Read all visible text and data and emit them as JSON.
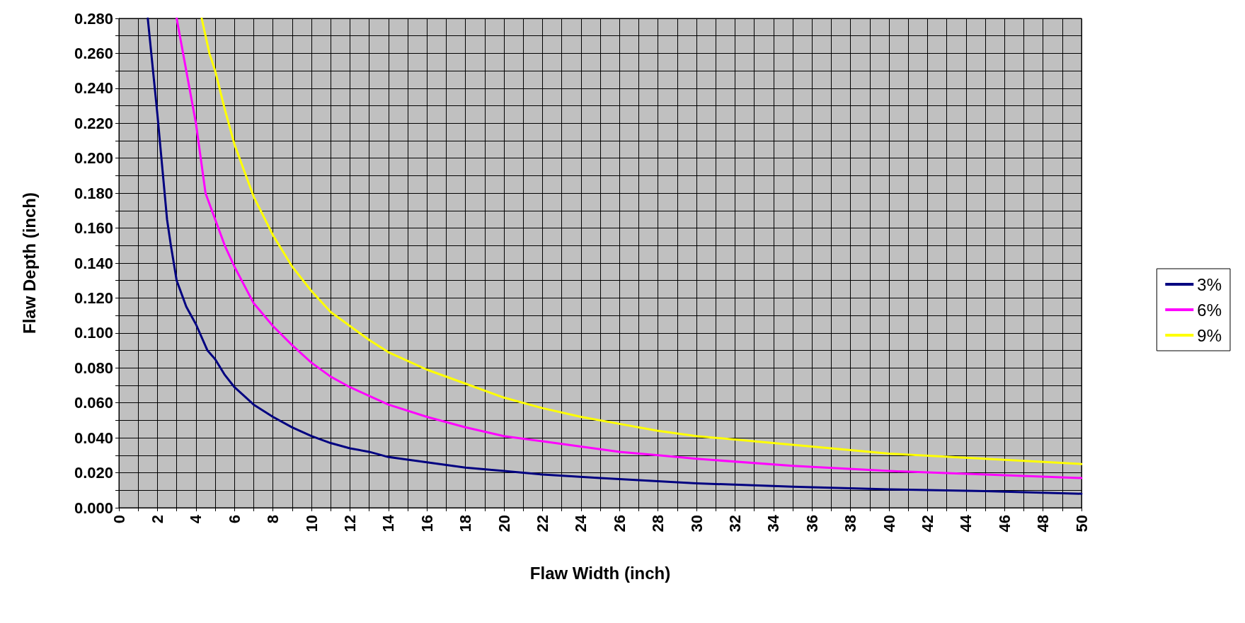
{
  "chart_data": {
    "type": "line",
    "xlabel": "Flaw Width (inch)",
    "ylabel": "Flaw Depth (inch)",
    "xlim": [
      0,
      50
    ],
    "ylim": [
      0,
      0.28
    ],
    "xticks": [
      0,
      {
        "value": 1,
        "label": null
      },
      2,
      {
        "value": 3,
        "label": null
      },
      4,
      {
        "value": 5,
        "label": null
      },
      6,
      {
        "value": 7,
        "label": null
      },
      8,
      {
        "value": 9,
        "label": null
      },
      10,
      {
        "value": 11,
        "label": null
      },
      12,
      {
        "value": 13,
        "label": null
      },
      14,
      {
        "value": 15,
        "label": null
      },
      16,
      {
        "value": 17,
        "label": null
      },
      18,
      {
        "value": 19,
        "label": null
      },
      20,
      {
        "value": 21,
        "label": null
      },
      22,
      {
        "value": 23,
        "label": null
      },
      24,
      {
        "value": 25,
        "label": null
      },
      26,
      {
        "value": 27,
        "label": null
      },
      28,
      {
        "value": 29,
        "label": null
      },
      30,
      {
        "value": 31,
        "label": null
      },
      32,
      {
        "value": 33,
        "label": null
      },
      34,
      {
        "value": 35,
        "label": null
      },
      36,
      {
        "value": 37,
        "label": null
      },
      38,
      {
        "value": 39,
        "label": null
      },
      40,
      {
        "value": 41,
        "label": null
      },
      42,
      {
        "value": 43,
        "label": null
      },
      44,
      {
        "value": 45,
        "label": null
      },
      46,
      {
        "value": 47,
        "label": null
      },
      48,
      {
        "value": 49,
        "label": null
      },
      50
    ],
    "yticks": [
      {
        "value": 0,
        "label": "0.000"
      },
      {
        "value": 0.01,
        "label": null
      },
      {
        "value": 0.02,
        "label": "0.020"
      },
      {
        "value": 0.03,
        "label": null
      },
      {
        "value": 0.04,
        "label": "0.040"
      },
      {
        "value": 0.05,
        "label": null
      },
      {
        "value": 0.06,
        "label": "0.060"
      },
      {
        "value": 0.07,
        "label": null
      },
      {
        "value": 0.08,
        "label": "0.080"
      },
      {
        "value": 0.09,
        "label": null
      },
      {
        "value": 0.1,
        "label": "0.100"
      },
      {
        "value": 0.11,
        "label": null
      },
      {
        "value": 0.12,
        "label": "0.120"
      },
      {
        "value": 0.13,
        "label": null
      },
      {
        "value": 0.14,
        "label": "0.140"
      },
      {
        "value": 0.15,
        "label": null
      },
      {
        "value": 0.16,
        "label": "0.160"
      },
      {
        "value": 0.17,
        "label": null
      },
      {
        "value": 0.18,
        "label": "0.180"
      },
      {
        "value": 0.19,
        "label": null
      },
      {
        "value": 0.2,
        "label": "0.200"
      },
      {
        "value": 0.21,
        "label": null
      },
      {
        "value": 0.22,
        "label": "0.220"
      },
      {
        "value": 0.23,
        "label": null
      },
      {
        "value": 0.24,
        "label": "0.240"
      },
      {
        "value": 0.25,
        "label": null
      },
      {
        "value": 0.26,
        "label": "0.260"
      },
      {
        "value": 0.27,
        "label": null
      },
      {
        "value": 0.28,
        "label": "0.280"
      }
    ],
    "grid": true,
    "legend": "right",
    "marker": "none",
    "line_style": "solid",
    "series": [
      {
        "name": "3%",
        "color": "#000080",
        "x": [
          1.5,
          2,
          2.5,
          2.7,
          3,
          3.5,
          4,
          4.6,
          5,
          5.5,
          6,
          7,
          8,
          9,
          10,
          11,
          12,
          13,
          14,
          16,
          18,
          20,
          22,
          25,
          30,
          35,
          40,
          45,
          50
        ],
        "values": [
          0.28,
          0.225,
          0.165,
          0.15,
          0.13,
          0.115,
          0.105,
          0.09,
          0.085,
          0.076,
          0.069,
          0.059,
          0.052,
          0.046,
          0.041,
          0.037,
          0.034,
          0.032,
          0.029,
          0.026,
          0.023,
          0.021,
          0.019,
          0.017,
          0.014,
          0.012,
          0.0105,
          0.0095,
          0.008
        ]
      },
      {
        "name": "6%",
        "color": "#ff00ff",
        "x": [
          3,
          3.5,
          4,
          4.5,
          5,
          5.5,
          6,
          7,
          8,
          9,
          10,
          11,
          12,
          13,
          14,
          16,
          18,
          20,
          22,
          24,
          26,
          28,
          30,
          35,
          40,
          45,
          50
        ],
        "values": [
          0.28,
          0.25,
          0.22,
          0.18,
          0.165,
          0.15,
          0.138,
          0.117,
          0.104,
          0.093,
          0.083,
          0.075,
          0.069,
          0.064,
          0.059,
          0.052,
          0.046,
          0.041,
          0.038,
          0.035,
          0.032,
          0.03,
          0.028,
          0.024,
          0.021,
          0.019,
          0.017
        ]
      },
      {
        "name": "9%",
        "color": "#ffff00",
        "x": [
          4.3,
          4.7,
          5,
          5.5,
          6,
          7,
          8,
          9,
          10,
          11,
          12,
          13,
          14,
          16,
          18,
          20,
          22,
          24,
          26,
          28,
          30,
          35,
          40,
          45,
          50
        ],
        "values": [
          0.28,
          0.26,
          0.25,
          0.228,
          0.208,
          0.178,
          0.156,
          0.138,
          0.124,
          0.112,
          0.104,
          0.096,
          0.089,
          0.079,
          0.071,
          0.063,
          0.057,
          0.052,
          0.048,
          0.044,
          0.041,
          0.036,
          0.031,
          0.028,
          0.025
        ]
      }
    ]
  }
}
